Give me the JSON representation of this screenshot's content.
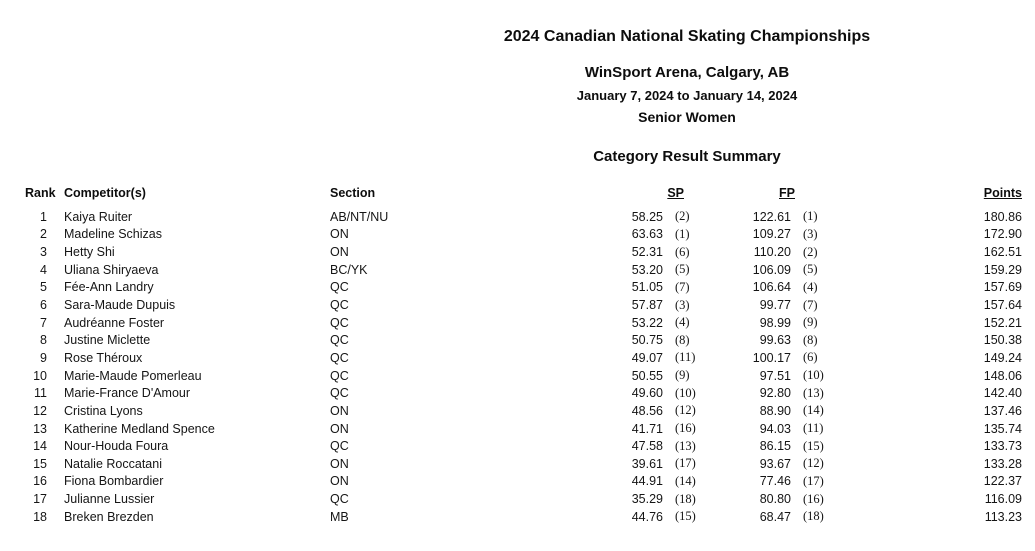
{
  "header": {
    "title": "2024 Canadian National Skating Championships",
    "venue": "WinSport Arena, Calgary, AB",
    "dates": "January 7, 2024 to January 14, 2024",
    "category": "Senior Women",
    "summary_title": "Category Result Summary"
  },
  "table": {
    "columns": {
      "rank": "Rank",
      "competitor": "Competitor(s)",
      "section": "Section",
      "sp": "SP",
      "fp": "FP",
      "points": "Points"
    },
    "rows": [
      {
        "rank": "1",
        "competitor": "Kaiya Ruiter",
        "section": "AB/NT/NU",
        "sp_score": "58.25",
        "sp_place": "(2)",
        "fp_score": "122.61",
        "fp_place": "(1)",
        "points": "180.86"
      },
      {
        "rank": "2",
        "competitor": "Madeline Schizas",
        "section": "ON",
        "sp_score": "63.63",
        "sp_place": "(1)",
        "fp_score": "109.27",
        "fp_place": "(3)",
        "points": "172.90"
      },
      {
        "rank": "3",
        "competitor": "Hetty Shi",
        "section": "ON",
        "sp_score": "52.31",
        "sp_place": "(6)",
        "fp_score": "110.20",
        "fp_place": "(2)",
        "points": "162.51"
      },
      {
        "rank": "4",
        "competitor": "Uliana Shiryaeva",
        "section": "BC/YK",
        "sp_score": "53.20",
        "sp_place": "(5)",
        "fp_score": "106.09",
        "fp_place": "(5)",
        "points": "159.29"
      },
      {
        "rank": "5",
        "competitor": "Fée-Ann Landry",
        "section": "QC",
        "sp_score": "51.05",
        "sp_place": "(7)",
        "fp_score": "106.64",
        "fp_place": "(4)",
        "points": "157.69"
      },
      {
        "rank": "6",
        "competitor": "Sara-Maude Dupuis",
        "section": "QC",
        "sp_score": "57.87",
        "sp_place": "(3)",
        "fp_score": "99.77",
        "fp_place": "(7)",
        "points": "157.64"
      },
      {
        "rank": "7",
        "competitor": "Audréanne Foster",
        "section": "QC",
        "sp_score": "53.22",
        "sp_place": "(4)",
        "fp_score": "98.99",
        "fp_place": "(9)",
        "points": "152.21"
      },
      {
        "rank": "8",
        "competitor": "Justine Miclette",
        "section": "QC",
        "sp_score": "50.75",
        "sp_place": "(8)",
        "fp_score": "99.63",
        "fp_place": "(8)",
        "points": "150.38"
      },
      {
        "rank": "9",
        "competitor": "Rose Théroux",
        "section": "QC",
        "sp_score": "49.07",
        "sp_place": "(11)",
        "fp_score": "100.17",
        "fp_place": "(6)",
        "points": "149.24"
      },
      {
        "rank": "10",
        "competitor": "Marie-Maude Pomerleau",
        "section": "QC",
        "sp_score": "50.55",
        "sp_place": "(9)",
        "fp_score": "97.51",
        "fp_place": "(10)",
        "points": "148.06"
      },
      {
        "rank": "11",
        "competitor": "Marie-France D'Amour",
        "section": "QC",
        "sp_score": "49.60",
        "sp_place": "(10)",
        "fp_score": "92.80",
        "fp_place": "(13)",
        "points": "142.40"
      },
      {
        "rank": "12",
        "competitor": "Cristina Lyons",
        "section": "ON",
        "sp_score": "48.56",
        "sp_place": "(12)",
        "fp_score": "88.90",
        "fp_place": "(14)",
        "points": "137.46"
      },
      {
        "rank": "13",
        "competitor": "Katherine Medland Spence",
        "section": "ON",
        "sp_score": "41.71",
        "sp_place": "(16)",
        "fp_score": "94.03",
        "fp_place": "(11)",
        "points": "135.74"
      },
      {
        "rank": "14",
        "competitor": "Nour-Houda Foura",
        "section": "QC",
        "sp_score": "47.58",
        "sp_place": "(13)",
        "fp_score": "86.15",
        "fp_place": "(15)",
        "points": "133.73"
      },
      {
        "rank": "15",
        "competitor": "Natalie Roccatani",
        "section": "ON",
        "sp_score": "39.61",
        "sp_place": "(17)",
        "fp_score": "93.67",
        "fp_place": "(12)",
        "points": "133.28"
      },
      {
        "rank": "16",
        "competitor": "Fiona Bombardier",
        "section": "ON",
        "sp_score": "44.91",
        "sp_place": "(14)",
        "fp_score": "77.46",
        "fp_place": "(17)",
        "points": "122.37"
      },
      {
        "rank": "17",
        "competitor": "Julianne Lussier",
        "section": "QC",
        "sp_score": "35.29",
        "sp_place": "(18)",
        "fp_score": "80.80",
        "fp_place": "(16)",
        "points": "116.09"
      },
      {
        "rank": "18",
        "competitor": "Breken Brezden",
        "section": "MB",
        "sp_score": "44.76",
        "sp_place": "(15)",
        "fp_score": "68.47",
        "fp_place": "(18)",
        "points": "113.23"
      }
    ]
  }
}
